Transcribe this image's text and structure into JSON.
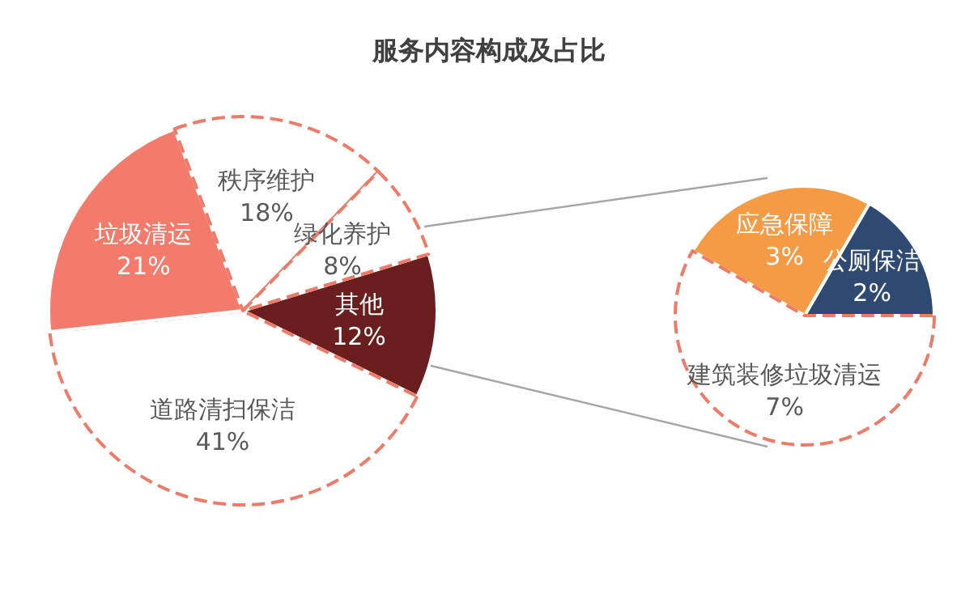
{
  "chart_data": [
    {
      "type": "pie",
      "title": "服务内容构成及占比",
      "categories": [
        "其他",
        "道路清扫保洁",
        "垃圾清运",
        "秩序维护",
        "绿化养护"
      ],
      "values": [
        12,
        41,
        21,
        18,
        8
      ],
      "value_labels": [
        "12%",
        "41%",
        "21%",
        "18%",
        "8%"
      ],
      "colors": [
        "#6b1e1e",
        "#ffffff",
        "#f47b6b",
        "#ffffff",
        "#ffffff"
      ]
    },
    {
      "type": "pie",
      "categories": [
        "应急保障",
        "公厕保洁",
        "建筑装修垃圾清运"
      ],
      "values": [
        3,
        2,
        7
      ],
      "value_labels": [
        "3%",
        "2%",
        "7%"
      ],
      "colors": [
        "#f59a45",
        "#2e4a72",
        "#ffffff"
      ]
    }
  ]
}
